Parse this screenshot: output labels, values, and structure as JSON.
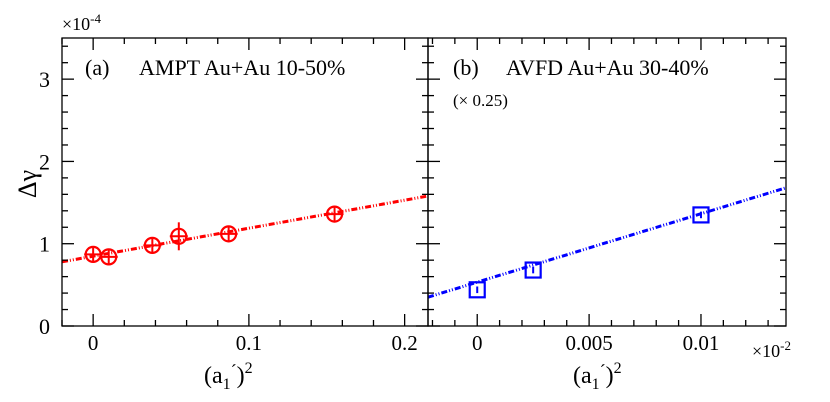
{
  "chart_data": [
    {
      "type": "scatter",
      "panel": "a",
      "label": "(a)",
      "title": "AMPT Au+Au 10-50%",
      "subtitle": "",
      "xlabel_base": "(a",
      "xlabel_sub": "1",
      "xlabel_prime": "´",
      "xlabel_close": ")",
      "xlabel_sup": "2",
      "ylabel": "Δγ",
      "yexp_base": "×10",
      "yexp_sup": "-4",
      "xlim": [
        -0.02,
        0.215
      ],
      "ylim": [
        0,
        3.5
      ],
      "xticks": [
        0,
        0.1,
        0.2
      ],
      "xtick_labels": [
        "0",
        "0.1",
        "0.2"
      ],
      "yticks": [
        0,
        1,
        2,
        3
      ],
      "ytick_labels": [
        "0",
        "1",
        "2",
        "3"
      ],
      "marker": "circle",
      "color": "#ff0000",
      "x": [
        0.0,
        0.01,
        0.038,
        0.055,
        0.087,
        0.155
      ],
      "y": [
        0.87,
        0.84,
        0.98,
        1.09,
        1.12,
        1.36
      ],
      "yerr": [
        0.1,
        0.1,
        0.1,
        0.17,
        0.1,
        0.1
      ],
      "fit": {
        "x0": -0.02,
        "y0": 0.78,
        "x1": 0.215,
        "y1": 1.58
      }
    },
    {
      "type": "scatter",
      "panel": "b",
      "label": "(b)",
      "title": "AVFD Au+Au 30-40%",
      "subtitle": "(× 0.25)",
      "xlabel_base": "(a",
      "xlabel_sub": "1",
      "xlabel_prime": "´",
      "xlabel_close": ")",
      "xlabel_sup": "2",
      "xexp_base": "×10",
      "xexp_sup": "-2",
      "xlim": [
        -0.0022,
        0.0138
      ],
      "ylim": [
        0,
        3.5
      ],
      "xticks": [
        0,
        0.005,
        0.01
      ],
      "xtick_labels": [
        "0",
        "0.005",
        "0.01"
      ],
      "yticks": [
        0,
        1,
        2,
        3
      ],
      "marker": "square",
      "color": "#0000ff",
      "x": [
        0.0,
        0.0025,
        0.01
      ],
      "y": [
        0.44,
        0.68,
        1.35
      ],
      "yerr": [
        0.04,
        0.04,
        0.04
      ],
      "fit": {
        "x0": -0.0022,
        "y0": 0.35,
        "x1": 0.0138,
        "y1": 1.68
      }
    }
  ]
}
